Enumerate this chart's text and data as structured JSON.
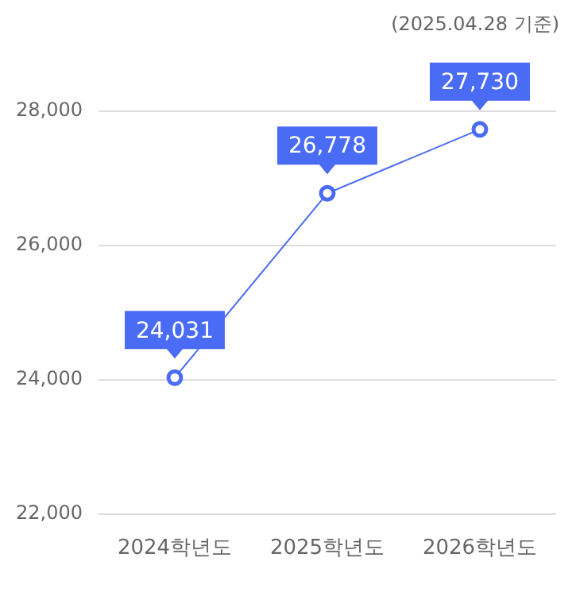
{
  "chart_data": {
    "type": "line",
    "annotations": [
      "(2025.04.28 기준)"
    ],
    "categories": [
      "2024학년도",
      "2025학년도",
      "2026학년도"
    ],
    "values": [
      24031,
      26778,
      27730
    ],
    "value_labels": [
      "24,031",
      "26,778",
      "27,730"
    ],
    "color": "#4a6cf5",
    "ylim": [
      22000,
      28000
    ],
    "yticks": [
      {
        "value": 22000,
        "label": "22,000"
      },
      {
        "value": 24000,
        "label": "24,000"
      },
      {
        "value": 26000,
        "label": "26,000"
      },
      {
        "value": 28000,
        "label": "28,000"
      }
    ],
    "grid": "y",
    "marker": "circle"
  }
}
